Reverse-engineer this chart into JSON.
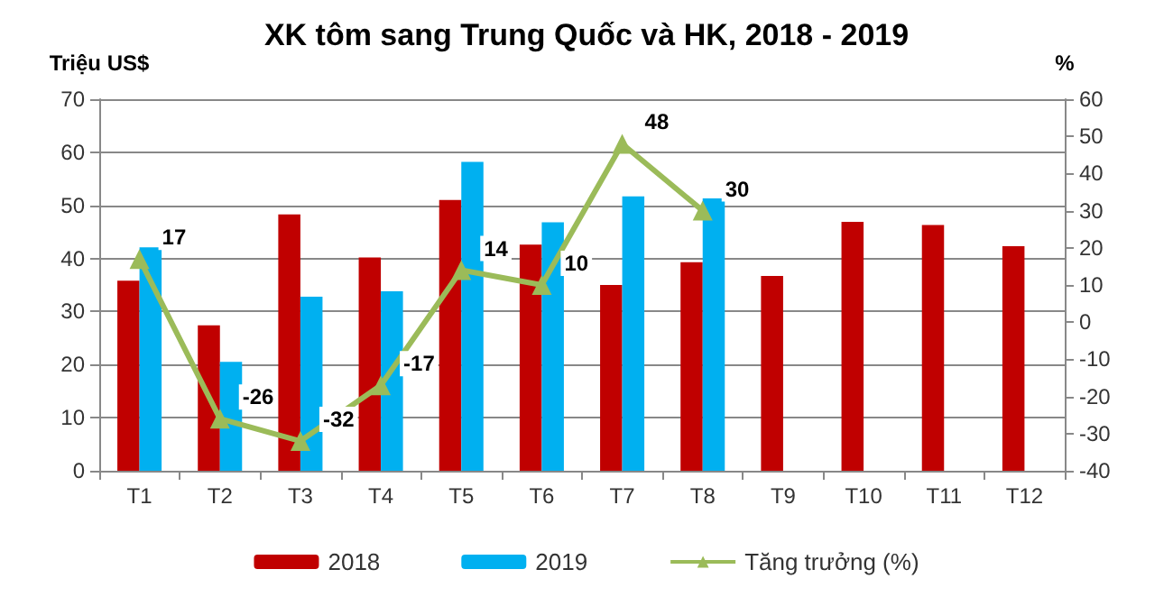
{
  "chart_data": {
    "type": "bar",
    "title": "XK tôm sang Trung Quốc và HK, 2018 - 2019",
    "ylabel": "Triệu US$",
    "y2label": "%",
    "categories": [
      "T1",
      "T2",
      "T3",
      "T4",
      "T5",
      "T6",
      "T7",
      "T8",
      "T9",
      "T10",
      "T11",
      "T12"
    ],
    "series": [
      {
        "name": "2018",
        "color": "#c00000",
        "values": [
          35.8,
          27.4,
          48.3,
          40.2,
          51,
          42.6,
          35,
          39.3,
          36.7,
          46.9,
          46.3,
          42.3
        ]
      },
      {
        "name": "2019",
        "color": "#00b0f0",
        "values": [
          42.1,
          20.5,
          32.8,
          33.8,
          58.2,
          46.8,
          51.7,
          51.3,
          null,
          null,
          null,
          null
        ]
      },
      {
        "name": "Tăng trưởng (%)",
        "type": "line",
        "axis": "y2",
        "color": "#9bbb59",
        "marker": "triangle",
        "data_labels": true,
        "values": [
          17,
          -26,
          -32,
          -17,
          14,
          10,
          48,
          30,
          null,
          null,
          null,
          null
        ]
      }
    ],
    "ylim": [
      0,
      70
    ],
    "yticks": [
      0,
      10,
      20,
      30,
      40,
      50,
      60,
      70
    ],
    "y2lim": [
      -40,
      60
    ],
    "y2ticks": [
      -40,
      -30,
      -20,
      -10,
      0,
      10,
      20,
      30,
      40,
      50,
      60
    ],
    "grid": "y",
    "legend": "bottom"
  }
}
